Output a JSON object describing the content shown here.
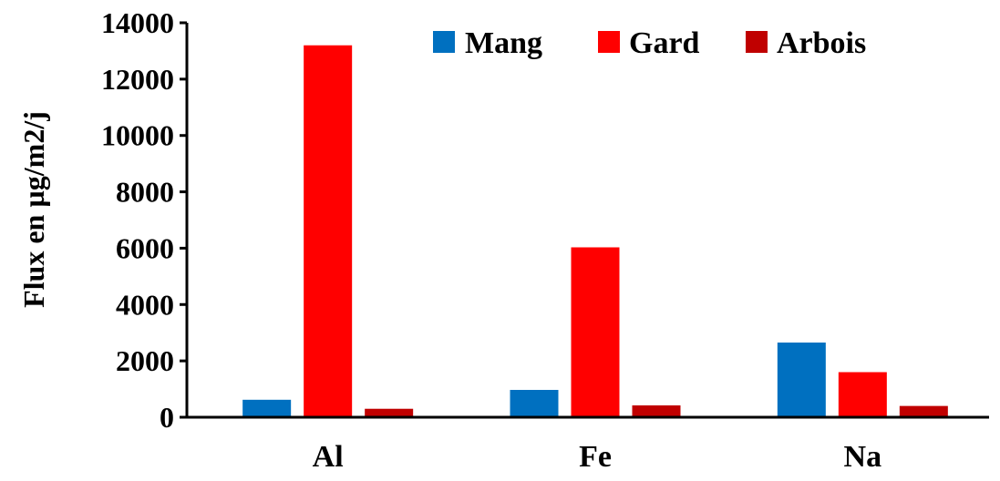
{
  "chart_data": {
    "type": "bar",
    "title": "",
    "xlabel": "",
    "ylabel": "Flux en µg/m2/j",
    "ylim": [
      0,
      14000
    ],
    "yticks": [
      0,
      2000,
      4000,
      6000,
      8000,
      10000,
      12000,
      14000
    ],
    "categories": [
      "Al",
      "Fe",
      "Na"
    ],
    "series": [
      {
        "name": "Mang",
        "color": "#0070c0",
        "values": [
          620,
          970,
          2650
        ]
      },
      {
        "name": "Gard",
        "color": "#ff0000",
        "values": [
          13200,
          6030,
          1600
        ]
      },
      {
        "name": "Arbois",
        "color": "#c00000",
        "values": [
          300,
          420,
          400
        ]
      }
    ],
    "grid": false,
    "legend": "top-right"
  }
}
